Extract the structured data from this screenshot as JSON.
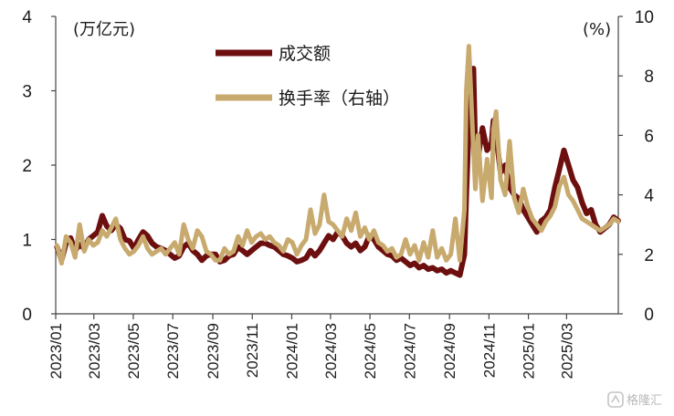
{
  "chart_data": {
    "type": "line",
    "left_axis_unit": "(万亿元)",
    "right_axis_unit": "(%)",
    "left_ylim": [
      0,
      4
    ],
    "left_ticks": [
      "0",
      "1",
      "2",
      "3",
      "4"
    ],
    "right_ylim": [
      0,
      10
    ],
    "right_ticks": [
      "0",
      "2",
      "4",
      "6",
      "8",
      "10"
    ],
    "x_range": [
      "2023-01-01",
      "2025-05-20"
    ],
    "x_tick_labels": [
      "2023/01",
      "2023/03",
      "2023/05",
      "2023/07",
      "2023/09",
      "2023/11",
      "2024/01",
      "2024/03",
      "2024/05",
      "2024/07",
      "2024/09",
      "2024/11",
      "2025/01",
      "2025/03"
    ],
    "x_tick_dates": [
      "2023-01-01",
      "2023-03-01",
      "2023-05-01",
      "2023-07-01",
      "2023-09-01",
      "2023-11-01",
      "2024-01-01",
      "2024-03-01",
      "2024-05-01",
      "2024-07-01",
      "2024-09-01",
      "2024-11-01",
      "2025-01-01",
      "2025-03-01"
    ],
    "legend_position": "top-center",
    "series": [
      {
        "name": "成交额",
        "axis": "left",
        "color": "#6d0f0f",
        "x": [
          "2023-01-03",
          "2023-01-10",
          "2023-01-17",
          "2023-01-24",
          "2023-01-31",
          "2023-02-07",
          "2023-02-14",
          "2023-02-21",
          "2023-02-28",
          "2023-03-07",
          "2023-03-14",
          "2023-03-21",
          "2023-03-28",
          "2023-04-04",
          "2023-04-11",
          "2023-04-18",
          "2023-04-25",
          "2023-05-02",
          "2023-05-09",
          "2023-05-16",
          "2023-05-23",
          "2023-05-30",
          "2023-06-06",
          "2023-06-13",
          "2023-06-20",
          "2023-06-27",
          "2023-07-04",
          "2023-07-11",
          "2023-07-18",
          "2023-07-25",
          "2023-08-01",
          "2023-08-08",
          "2023-08-15",
          "2023-08-22",
          "2023-08-29",
          "2023-09-05",
          "2023-09-12",
          "2023-09-19",
          "2023-09-26",
          "2023-10-03",
          "2023-10-10",
          "2023-10-17",
          "2023-10-24",
          "2023-10-31",
          "2023-11-07",
          "2023-11-14",
          "2023-11-21",
          "2023-11-28",
          "2023-12-05",
          "2023-12-12",
          "2023-12-19",
          "2023-12-26",
          "2024-01-02",
          "2024-01-09",
          "2024-01-16",
          "2024-01-23",
          "2024-01-30",
          "2024-02-06",
          "2024-02-13",
          "2024-02-20",
          "2024-02-27",
          "2024-03-05",
          "2024-03-12",
          "2024-03-19",
          "2024-03-26",
          "2024-04-02",
          "2024-04-09",
          "2024-04-16",
          "2024-04-23",
          "2024-04-30",
          "2024-05-07",
          "2024-05-14",
          "2024-05-21",
          "2024-05-28",
          "2024-06-04",
          "2024-06-11",
          "2024-06-18",
          "2024-06-25",
          "2024-07-02",
          "2024-07-09",
          "2024-07-16",
          "2024-07-23",
          "2024-07-30",
          "2024-08-06",
          "2024-08-13",
          "2024-08-20",
          "2024-08-27",
          "2024-09-03",
          "2024-09-10",
          "2024-09-17",
          "2024-09-24",
          "2024-09-27",
          "2024-10-01",
          "2024-10-08",
          "2024-10-11",
          "2024-10-15",
          "2024-10-22",
          "2024-10-29",
          "2024-11-05",
          "2024-11-08",
          "2024-11-12",
          "2024-11-19",
          "2024-11-26",
          "2024-12-03",
          "2024-12-10",
          "2024-12-17",
          "2024-12-24",
          "2024-12-31",
          "2025-01-07",
          "2025-01-14",
          "2025-01-21",
          "2025-01-28",
          "2025-02-04",
          "2025-02-11",
          "2025-02-18",
          "2025-02-25",
          "2025-03-04",
          "2025-03-11",
          "2025-03-18",
          "2025-03-25",
          "2025-04-01",
          "2025-04-08",
          "2025-04-15",
          "2025-04-22",
          "2025-04-29",
          "2025-05-06",
          "2025-05-13",
          "2025-05-20"
        ],
        "values": [
          0.9,
          0.72,
          0.95,
          1.02,
          0.85,
          0.93,
          0.88,
          1.0,
          1.05,
          1.1,
          1.32,
          1.18,
          1.12,
          1.2,
          1.15,
          1.0,
          0.98,
          0.88,
          1.0,
          1.1,
          1.05,
          0.95,
          0.9,
          0.88,
          0.85,
          0.8,
          0.75,
          0.78,
          0.9,
          0.95,
          0.85,
          0.8,
          0.72,
          0.78,
          0.8,
          0.8,
          0.7,
          0.72,
          0.78,
          0.8,
          0.9,
          0.85,
          0.8,
          0.85,
          0.9,
          0.95,
          0.95,
          0.92,
          0.9,
          0.85,
          0.8,
          0.78,
          0.75,
          0.7,
          0.72,
          0.75,
          0.85,
          0.78,
          0.85,
          0.95,
          1.05,
          1.0,
          1.1,
          1.05,
          0.95,
          0.9,
          0.95,
          0.85,
          0.9,
          1.05,
          1.0,
          0.9,
          0.85,
          0.8,
          0.78,
          0.72,
          0.75,
          0.7,
          0.65,
          0.68,
          0.62,
          0.65,
          0.6,
          0.62,
          0.58,
          0.6,
          0.55,
          0.58,
          0.55,
          0.52,
          0.8,
          1.6,
          2.55,
          3.3,
          2.2,
          2.1,
          2.5,
          2.2,
          2.3,
          2.6,
          2.4,
          1.9,
          2.0,
          1.7,
          1.6,
          1.55,
          1.4,
          1.3,
          1.2,
          1.1,
          1.25,
          1.3,
          1.4,
          1.7,
          1.95,
          2.2,
          2.0,
          1.8,
          1.7,
          1.5,
          1.35,
          1.4,
          1.2,
          1.1,
          1.15,
          1.2,
          1.3,
          1.25
        ]
      },
      {
        "name": "换手率（右轴）",
        "axis": "right",
        "color": "#c8aa6e",
        "x": [
          "2023-01-03",
          "2023-01-10",
          "2023-01-17",
          "2023-01-24",
          "2023-01-31",
          "2023-02-07",
          "2023-02-14",
          "2023-02-21",
          "2023-02-28",
          "2023-03-07",
          "2023-03-14",
          "2023-03-21",
          "2023-03-28",
          "2023-04-04",
          "2023-04-11",
          "2023-04-18",
          "2023-04-25",
          "2023-05-02",
          "2023-05-09",
          "2023-05-16",
          "2023-05-23",
          "2023-05-30",
          "2023-06-06",
          "2023-06-13",
          "2023-06-20",
          "2023-06-27",
          "2023-07-04",
          "2023-07-11",
          "2023-07-18",
          "2023-07-25",
          "2023-08-01",
          "2023-08-08",
          "2023-08-15",
          "2023-08-22",
          "2023-08-29",
          "2023-09-05",
          "2023-09-12",
          "2023-09-19",
          "2023-09-26",
          "2023-10-03",
          "2023-10-10",
          "2023-10-17",
          "2023-10-24",
          "2023-10-31",
          "2023-11-07",
          "2023-11-14",
          "2023-11-21",
          "2023-11-28",
          "2023-12-05",
          "2023-12-12",
          "2023-12-19",
          "2023-12-26",
          "2024-01-02",
          "2024-01-09",
          "2024-01-16",
          "2024-01-23",
          "2024-01-30",
          "2024-02-06",
          "2024-02-13",
          "2024-02-20",
          "2024-02-27",
          "2024-03-05",
          "2024-03-12",
          "2024-03-19",
          "2024-03-26",
          "2024-04-02",
          "2024-04-09",
          "2024-04-16",
          "2024-04-23",
          "2024-04-30",
          "2024-05-07",
          "2024-05-14",
          "2024-05-21",
          "2024-05-28",
          "2024-06-04",
          "2024-06-11",
          "2024-06-18",
          "2024-06-25",
          "2024-07-02",
          "2024-07-09",
          "2024-07-16",
          "2024-07-23",
          "2024-07-30",
          "2024-08-06",
          "2024-08-13",
          "2024-08-20",
          "2024-08-27",
          "2024-09-03",
          "2024-09-10",
          "2024-09-17",
          "2024-09-24",
          "2024-09-27",
          "2024-10-01",
          "2024-10-08",
          "2024-10-11",
          "2024-10-15",
          "2024-10-22",
          "2024-10-29",
          "2024-11-05",
          "2024-11-08",
          "2024-11-12",
          "2024-11-19",
          "2024-11-26",
          "2024-12-03",
          "2024-12-10",
          "2024-12-17",
          "2024-12-24",
          "2024-12-31",
          "2025-01-07",
          "2025-01-14",
          "2025-01-21",
          "2025-01-28",
          "2025-02-04",
          "2025-02-11",
          "2025-02-18",
          "2025-02-25",
          "2025-03-04",
          "2025-03-11",
          "2025-03-18",
          "2025-03-25",
          "2025-04-01",
          "2025-04-08",
          "2025-04-15",
          "2025-04-22",
          "2025-04-29",
          "2025-05-06",
          "2025-05-13",
          "2025-05-20"
        ],
        "values": [
          2.3,
          1.7,
          2.6,
          2.4,
          1.9,
          3.0,
          2.1,
          2.5,
          2.3,
          2.4,
          2.8,
          2.6,
          2.9,
          3.2,
          2.5,
          2.2,
          2.0,
          2.1,
          2.3,
          2.6,
          2.2,
          2.0,
          2.1,
          2.2,
          2.0,
          2.2,
          2.4,
          2.0,
          3.0,
          2.5,
          2.2,
          2.8,
          2.6,
          2.1,
          2.0,
          1.8,
          1.8,
          2.2,
          2.0,
          2.1,
          2.6,
          2.3,
          2.8,
          2.4,
          2.6,
          2.7,
          2.5,
          2.6,
          2.4,
          2.3,
          2.1,
          2.5,
          2.4,
          2.0,
          2.3,
          2.5,
          3.5,
          2.7,
          3.0,
          4.0,
          3.1,
          3.0,
          2.8,
          2.6,
          3.2,
          2.8,
          3.4,
          2.6,
          2.9,
          2.5,
          2.8,
          2.4,
          2.3,
          2.1,
          2.2,
          1.9,
          2.0,
          2.5,
          2.0,
          2.3,
          1.8,
          2.4,
          1.9,
          2.8,
          1.9,
          2.2,
          1.8,
          2.0,
          3.2,
          1.8,
          3.5,
          7.5,
          9.0,
          5.5,
          4.2,
          6.0,
          3.8,
          5.2,
          3.9,
          6.2,
          6.8,
          4.5,
          4.0,
          5.8,
          3.9,
          3.4,
          4.2,
          3.6,
          3.2,
          3.0,
          2.8,
          3.1,
          3.3,
          3.6,
          4.3,
          4.6,
          4.0,
          3.8,
          3.5,
          3.2,
          3.1,
          3.0,
          2.9,
          2.8,
          2.9,
          3.0,
          3.2,
          3.1
        ]
      }
    ]
  },
  "watermark": {
    "text": "格隆汇",
    "icon": "glh-logo-icon"
  }
}
